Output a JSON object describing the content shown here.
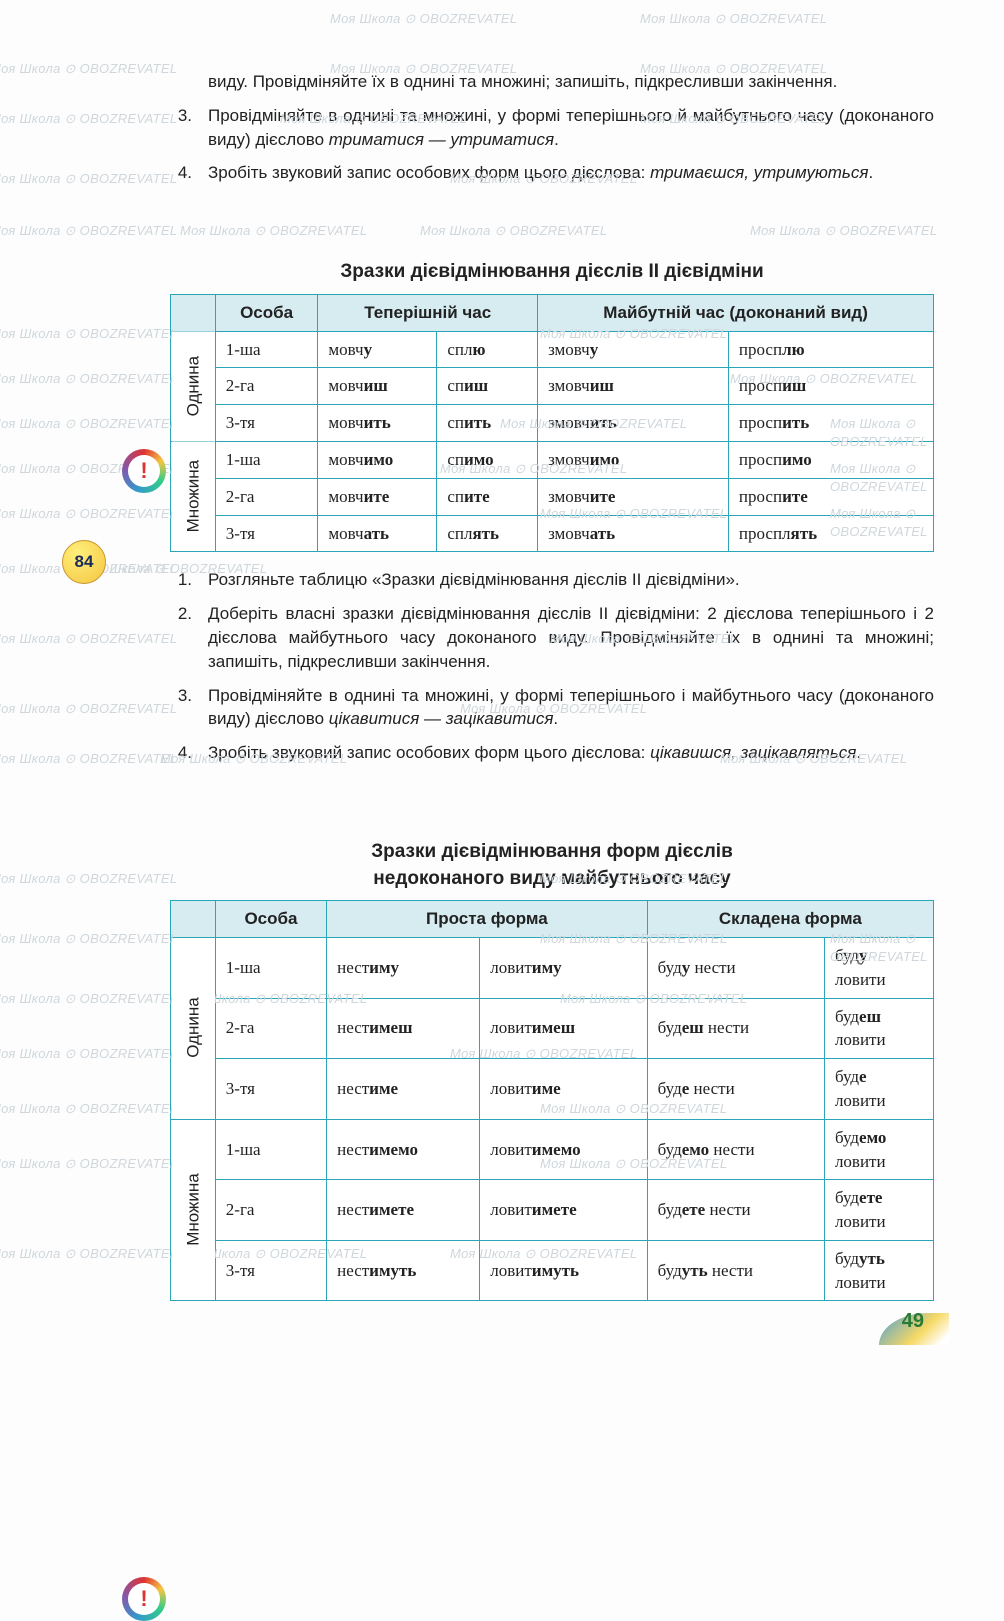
{
  "watermark_text": "Моя Школа ⊙ OBOZREVATEL",
  "page_number": "49",
  "intro_items": [
    {
      "num": "",
      "html": "виду. Провідміняйте їх в однині та множині; запишіть, підкресливши закінчення."
    },
    {
      "num": "3.",
      "html": "Провідміняйте в однині та множині, у формі теперішнього й майбутнього часу (доконаного виду) дієслово <span class='italic'>триматися — утриматися</span>."
    },
    {
      "num": "4.",
      "html": "Зробіть звуковий запис особових форм цього дієслова: <span class='italic'>тримаєшся, утримуються</span>."
    }
  ],
  "table1": {
    "title": "Зразки дієвідмінювання дієслів II дієвідміни",
    "head": [
      "",
      "Особа",
      "Теперішній час",
      "",
      "Майбутній час (доконаний вид)",
      ""
    ],
    "col_headers": [
      "Особа",
      "Теперішній час",
      "Майбутній час (доконаний вид)"
    ],
    "groups": [
      {
        "label": "Однина",
        "rows": [
          {
            "p": "1-ша",
            "c": [
              "мовч<b>у</b>",
              "спл<b>ю</b>",
              "змовч<b>у</b>",
              "просп<b>лю</b>"
            ]
          },
          {
            "p": "2-га",
            "c": [
              "мовч<b>иш</b>",
              "сп<b>иш</b>",
              "змовч<b>иш</b>",
              "просп<b>иш</b>"
            ]
          },
          {
            "p": "3-тя",
            "c": [
              "мовч<b>ить</b>",
              "сп<b>ить</b>",
              "змовч<b>ить</b>",
              "просп<b>ить</b>"
            ]
          }
        ]
      },
      {
        "label": "Множина",
        "rows": [
          {
            "p": "1-ша",
            "c": [
              "мовч<b>имо</b>",
              "сп<b>имо</b>",
              "змовч<b>имо</b>",
              "просп<b>имо</b>"
            ]
          },
          {
            "p": "2-га",
            "c": [
              "мовч<b>ите</b>",
              "сп<b>ите</b>",
              "змовч<b>ите</b>",
              "просп<b>ите</b>"
            ]
          },
          {
            "p": "3-тя",
            "c": [
              "мовч<b>ать</b>",
              "спл<b>ять</b>",
              "змовч<b>ать</b>",
              "проспл<b>ять</b>"
            ]
          }
        ]
      }
    ]
  },
  "exercise_num": "84",
  "ex_items": [
    {
      "num": "1.",
      "html": "Розгляньте таблицю «Зразки дієвідмінювання дієслів II дієвідміни»."
    },
    {
      "num": "2.",
      "html": "Доберіть власні зразки дієвідмінювання дієслів II дієвідміни: 2 дієслова теперішнього і 2 дієслова майбутнього часу доконаного виду. Провідміняйте їх в однині та множині; запишіть, підкресливши закінчення."
    },
    {
      "num": "3.",
      "html": "Провідміняйте в однині та множині, у формі теперішнього і майбутнього часу (доконаного виду) дієслово <span class='italic'>цікавитися — зацікавитися</span>."
    },
    {
      "num": "4.",
      "html": "Зробіть звуковий запис особових форм цього дієслова: <span class='italic'>цікавишся, зацікавляться</span>."
    }
  ],
  "table2": {
    "title_l1": "Зразки дієвідмінювання форм дієслів",
    "title_l2": "недоконаного виду майбутнього часу",
    "col_headers": [
      "Особа",
      "Проста форма",
      "Складена форма"
    ],
    "groups": [
      {
        "label": "Однина",
        "rows": [
          {
            "p": "1-ша",
            "c": [
              "нест<b>иму</b>",
              "ловит<b>иму</b>",
              "буд<b>у</b> нести",
              "буд<b>у</b><br>ловити"
            ]
          },
          {
            "p": "2-га",
            "c": [
              "нест<b>имеш</b>",
              "ловит<b>имеш</b>",
              "буд<b>еш</b> нести",
              "буд<b>еш</b><br>ловити"
            ]
          },
          {
            "p": "3-тя",
            "c": [
              "нест<b>име</b>",
              "ловит<b>име</b>",
              "буд<b>е</b> нести",
              "буд<b>е</b><br>ловити"
            ]
          }
        ]
      },
      {
        "label": "Множина",
        "rows": [
          {
            "p": "1-ша",
            "c": [
              "нест<b>имемо</b>",
              "ловит<b>имемо</b>",
              "буд<b>емо</b> нести",
              "буд<b>емо</b><br>ловити"
            ]
          },
          {
            "p": "2-га",
            "c": [
              "нест<b>имете</b>",
              "ловит<b>имете</b>",
              "буд<b>ете</b> нести",
              "буд<b>ете</b><br>ловити"
            ]
          },
          {
            "p": "3-тя",
            "c": [
              "нест<b>имуть</b>",
              "ловит<b>имуть</b>",
              "буд<b>уть</b> нести",
              "буд<b>уть</b><br>ловити"
            ]
          }
        ]
      }
    ]
  },
  "colors": {
    "border": "#2ba6b8",
    "header_bg": "#d6ecf0",
    "pagenum": "#2a7a36"
  }
}
